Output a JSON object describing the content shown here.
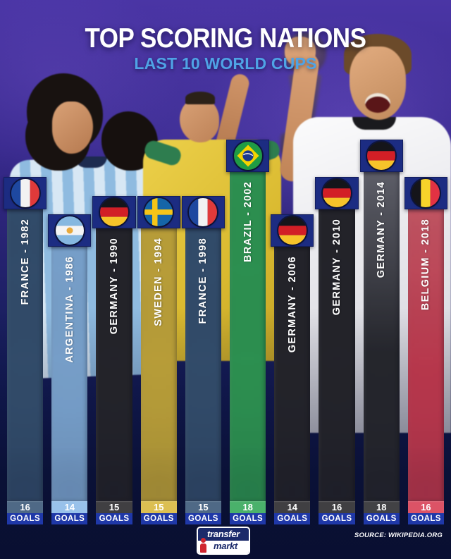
{
  "header": {
    "title": "TOP SCORING NATIONS",
    "subtitle": "LAST 10 WORLD CUPS",
    "subtitle_color": "#4fa3e6",
    "title_color": "#ffffff"
  },
  "chart_data": {
    "type": "bar",
    "title": "TOP SCORING NATIONS",
    "subtitle": "LAST 10 WORLD CUPS",
    "ylabel": "GOALS",
    "ylim": [
      0,
      18
    ],
    "unit_label": "GOALS",
    "categories": [
      "FRANCE - 1982",
      "ARGENTINA - 1986",
      "GERMANY - 1990",
      "SWEDEN - 1994",
      "FRANCE - 1998",
      "BRAZIL - 2002",
      "GERMANY - 2006",
      "GERMANY - 2010",
      "GERMANY - 2014",
      "BELGIUM - 2018"
    ],
    "values": [
      16,
      14,
      15,
      15,
      15,
      18,
      14,
      16,
      18,
      16
    ],
    "bars": [
      {
        "label": "FRANCE - 1982",
        "nation": "France",
        "year": 1982,
        "goals": 16,
        "color": "#3b5878",
        "flag": "france"
      },
      {
        "label": "ARGENTINA - 1986",
        "nation": "Argentina",
        "year": 1986,
        "goals": 14,
        "color": "#8cbae8",
        "flag": "argentina"
      },
      {
        "label": "GERMANY - 1990",
        "nation": "Germany",
        "year": 1990,
        "goals": 15,
        "color": "#2a292d",
        "flag": "germany"
      },
      {
        "label": "SWEDEN - 1994",
        "nation": "Sweden",
        "year": 1994,
        "goals": 15,
        "color": "#d8b83e",
        "flag": "sweden"
      },
      {
        "label": "FRANCE - 1998",
        "nation": "France",
        "year": 1998,
        "goals": 15,
        "color": "#3b5878",
        "flag": "france"
      },
      {
        "label": "BRAZIL - 2002",
        "nation": "Brazil",
        "year": 2002,
        "goals": 18,
        "color": "#35a85a",
        "flag": "brazil"
      },
      {
        "label": "GERMANY - 2006",
        "nation": "Germany",
        "year": 2006,
        "goals": 14,
        "color": "#2a292d",
        "flag": "germany"
      },
      {
        "label": "GERMANY - 2010",
        "nation": "Germany",
        "year": 2010,
        "goals": 16,
        "color": "#2a292d",
        "flag": "germany"
      },
      {
        "label": "GERMANY - 2014",
        "nation": "Germany",
        "year": 2014,
        "goals": 18,
        "color": "#2c2c30",
        "color_top": "#6e6e76",
        "flag": "germany"
      },
      {
        "label": "BELGIUM - 2018",
        "nation": "Belgium",
        "year": 2018,
        "goals": 16,
        "color": "#d84055",
        "color_top": "#e2626f",
        "flag": "belgium"
      }
    ],
    "cap_color": "#1c2c82",
    "goals_strip_color": "#1f38a8",
    "legend": false,
    "grid": false
  },
  "footer": {
    "logo_top": "transfer",
    "logo_bottom": "markt",
    "logo_bg_color": "#1b2a6a",
    "logo_mascot_color": "#cf2730",
    "source": "SOURCE: WIKIPEDIA.ORG"
  }
}
